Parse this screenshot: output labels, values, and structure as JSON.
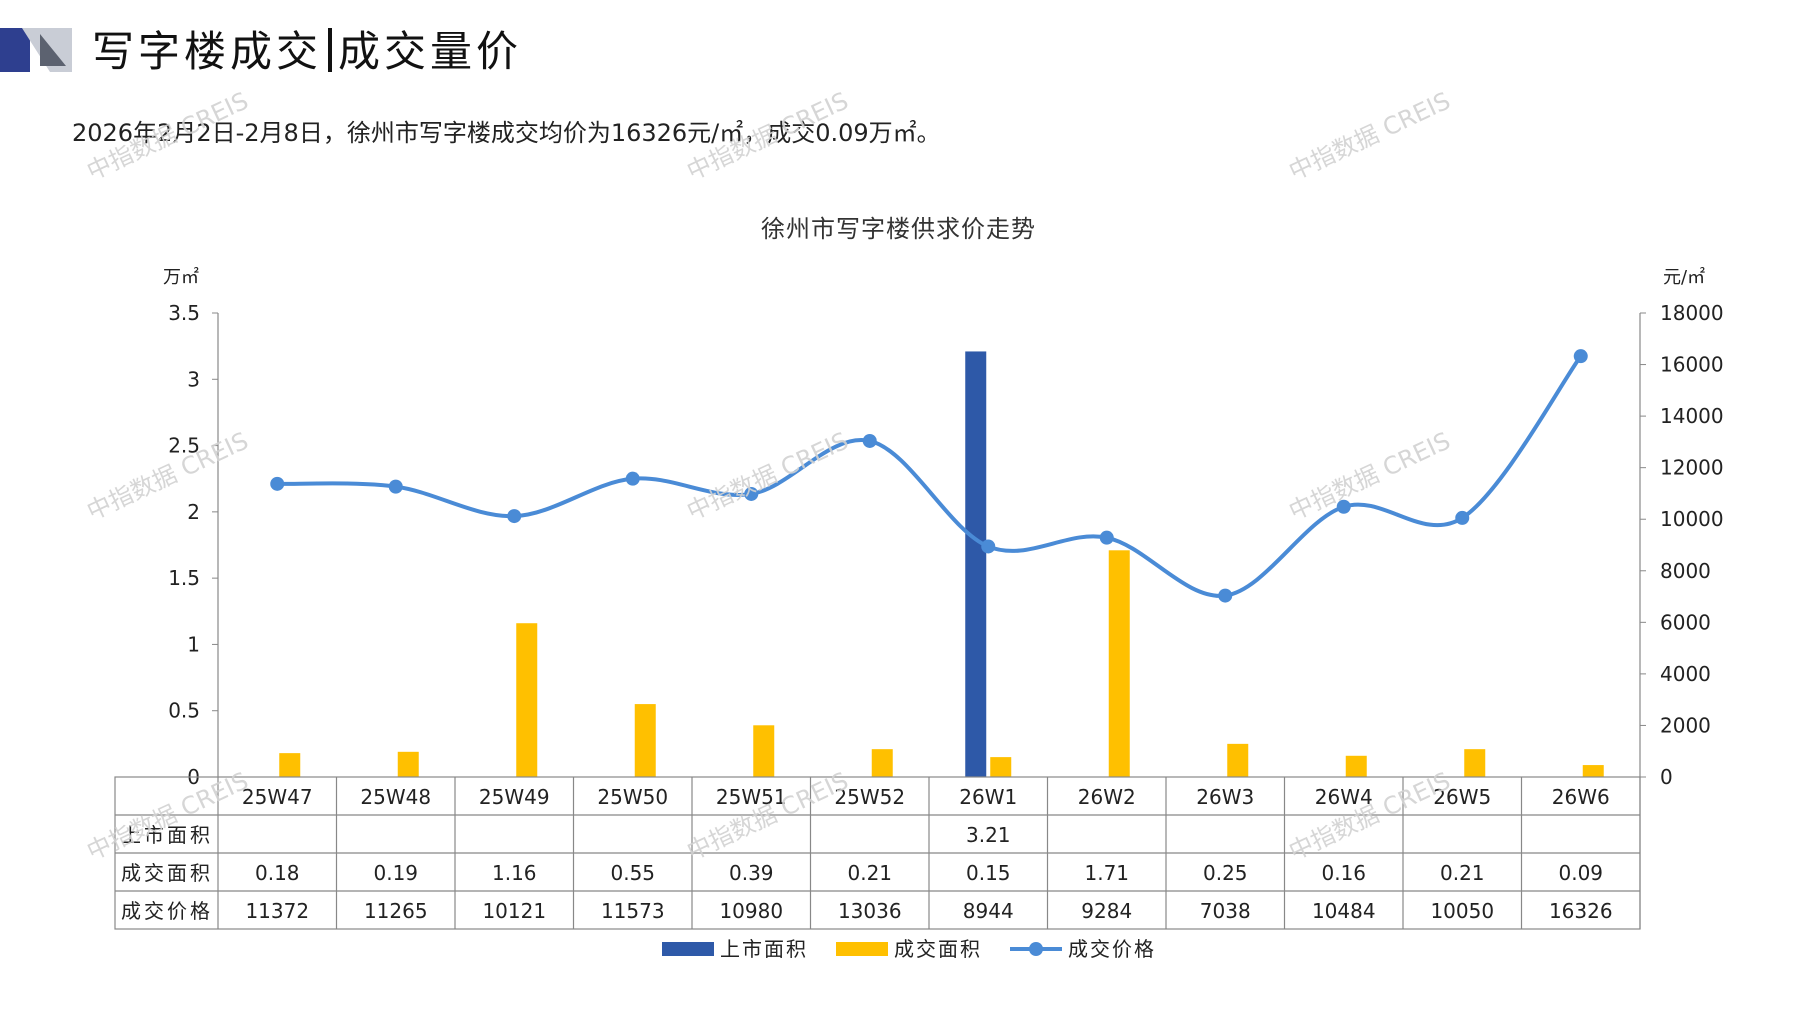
{
  "header": {
    "title_left": "写字楼成交",
    "title_right": "成交量价",
    "summary": "2026年2月2日-2月8日，徐州市写字楼成交均价为16326元/㎡，成交0.09万㎡。"
  },
  "watermark": "中指数据 CREIS",
  "colors": {
    "supply": "#2E59A8",
    "deal_area": "#FFC000",
    "price": "#4A8BD6",
    "logo_dark": "#2E3F8F",
    "logo_light": "#C9CDD6"
  },
  "chart_data": {
    "type": "bar+line",
    "title": "徐州市写字楼供求价走势",
    "left_unit": "万㎡",
    "right_unit": "元/㎡",
    "categories": [
      "25W47",
      "25W48",
      "25W49",
      "25W50",
      "25W51",
      "25W52",
      "26W1",
      "26W2",
      "26W3",
      "26W4",
      "26W5",
      "26W6"
    ],
    "y_left": {
      "min": 0,
      "max": 3.5,
      "ticks": [
        "0",
        "0.5",
        "1",
        "1.5",
        "2",
        "2.5",
        "3",
        "3.5"
      ]
    },
    "y_right": {
      "min": 0,
      "max": 18000,
      "ticks": [
        "0",
        "2000",
        "4000",
        "6000",
        "8000",
        "10000",
        "12000",
        "14000",
        "16000",
        "18000"
      ]
    },
    "series": [
      {
        "name": "上市面积",
        "kind": "bar",
        "axis": "left",
        "values": [
          null,
          null,
          null,
          null,
          null,
          null,
          3.21,
          null,
          null,
          null,
          null,
          null
        ],
        "labels": [
          "",
          "",
          "",
          "",
          "",
          "",
          "3.21",
          "",
          "",
          "",
          "",
          ""
        ]
      },
      {
        "name": "成交面积",
        "kind": "bar",
        "axis": "left",
        "values": [
          0.18,
          0.19,
          1.16,
          0.55,
          0.39,
          0.21,
          0.15,
          1.71,
          0.25,
          0.16,
          0.21,
          0.09
        ],
        "labels": [
          "0.18",
          "0.19",
          "1.16",
          "0.55",
          "0.39",
          "0.21",
          "0.15",
          "1.71",
          "0.25",
          "0.16",
          "0.21",
          "0.09"
        ]
      },
      {
        "name": "成交价格",
        "kind": "line",
        "axis": "right",
        "values": [
          11372,
          11265,
          10121,
          11573,
          10980,
          13036,
          8944,
          9284,
          7038,
          10484,
          10050,
          16326
        ],
        "labels": [
          "11372",
          "11265",
          "10121",
          "11573",
          "10980",
          "13036",
          "8944",
          "9284",
          "7038",
          "10484",
          "10050",
          "16326"
        ]
      }
    ],
    "legend_position": "bottom",
    "grid": false
  }
}
